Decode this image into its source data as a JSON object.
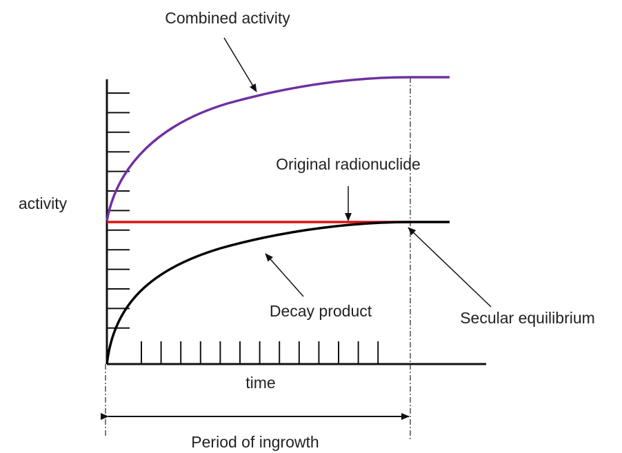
{
  "labels": {
    "combined": "Combined activity",
    "original": "Original radionuclide",
    "y_axis": "activity",
    "decay": "Decay product",
    "equilibrium": "Secular equilibrium",
    "x_axis": "time",
    "period": "Period of ingrowth"
  }
}
